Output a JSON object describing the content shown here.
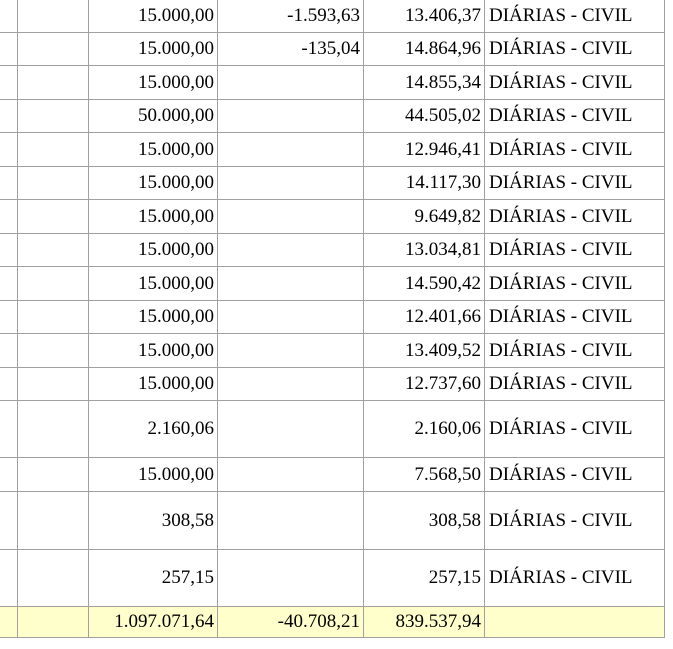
{
  "rows": [
    {
      "valor": "15.000,00",
      "ajuste": "-1.593,63",
      "liquido": "13.406,37",
      "descricao": "DIÁRIAS - CIVIL"
    },
    {
      "valor": "15.000,00",
      "ajuste": "-135,04",
      "liquido": "14.864,96",
      "descricao": "DIÁRIAS - CIVIL"
    },
    {
      "valor": "15.000,00",
      "ajuste": "",
      "liquido": "14.855,34",
      "descricao": "DIÁRIAS - CIVIL"
    },
    {
      "valor": "50.000,00",
      "ajuste": "",
      "liquido": "44.505,02",
      "descricao": "DIÁRIAS - CIVIL"
    },
    {
      "valor": "15.000,00",
      "ajuste": "",
      "liquido": "12.946,41",
      "descricao": "DIÁRIAS - CIVIL"
    },
    {
      "valor": "15.000,00",
      "ajuste": "",
      "liquido": "14.117,30",
      "descricao": "DIÁRIAS - CIVIL"
    },
    {
      "valor": "15.000,00",
      "ajuste": "",
      "liquido": "9.649,82",
      "descricao": "DIÁRIAS - CIVIL"
    },
    {
      "valor": "15.000,00",
      "ajuste": "",
      "liquido": "13.034,81",
      "descricao": "DIÁRIAS - CIVIL"
    },
    {
      "valor": "15.000,00",
      "ajuste": "",
      "liquido": "14.590,42",
      "descricao": "DIÁRIAS - CIVIL"
    },
    {
      "valor": "15.000,00",
      "ajuste": "",
      "liquido": "12.401,66",
      "descricao": "DIÁRIAS - CIVIL"
    },
    {
      "valor": "15.000,00",
      "ajuste": "",
      "liquido": "13.409,52",
      "descricao": "DIÁRIAS - CIVIL"
    },
    {
      "valor": "15.000,00",
      "ajuste": "",
      "liquido": "12.737,60",
      "descricao": "DIÁRIAS - CIVIL"
    },
    {
      "valor": "2.160,06",
      "ajuste": "",
      "liquido": "2.160,06",
      "descricao": "DIÁRIAS - CIVIL"
    },
    {
      "valor": "15.000,00",
      "ajuste": "",
      "liquido": "7.568,50",
      "descricao": "DIÁRIAS - CIVIL"
    },
    {
      "valor": "308,58",
      "ajuste": "",
      "liquido": "308,58",
      "descricao": "DIÁRIAS - CIVIL"
    },
    {
      "valor": "257,15",
      "ajuste": "",
      "liquido": "257,15",
      "descricao": "DIÁRIAS - CIVIL"
    }
  ],
  "total": {
    "valor": "1.097.071,64",
    "ajuste": "-40.708,21",
    "liquido": "839.537,94",
    "descricao": ""
  }
}
